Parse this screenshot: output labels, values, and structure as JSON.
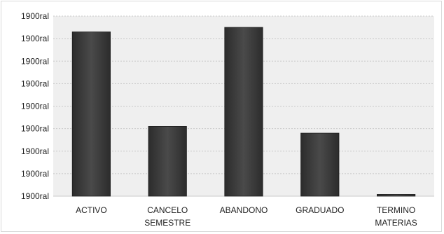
{
  "chart_data": {
    "type": "bar",
    "categories": [
      [
        "ACTIVO"
      ],
      [
        "CANCELO",
        "SEMESTRE"
      ],
      [
        "ABANDONO"
      ],
      [
        "GRADUADO"
      ],
      [
        "TERMINO",
        "MATERIAS"
      ]
    ],
    "values": [
      7.3,
      3.1,
      7.5,
      2.8,
      0.08
    ],
    "ylim": [
      0,
      8
    ],
    "y_tick_labels": [
      "1900ral",
      "1900ral",
      "1900ral",
      "1900ral",
      "1900ral",
      "1900ral",
      "1900ral",
      "1900ral",
      "1900ral"
    ],
    "title": "",
    "xlabel": "",
    "ylabel": "",
    "grid": true,
    "legend": "none",
    "colors": {
      "bar": "#3a3a3a",
      "bar_highlight": "#5a5a5a",
      "plot_bg": "#efefef",
      "grid": "#c8c8c8",
      "frame": "#d9d9d9"
    }
  }
}
